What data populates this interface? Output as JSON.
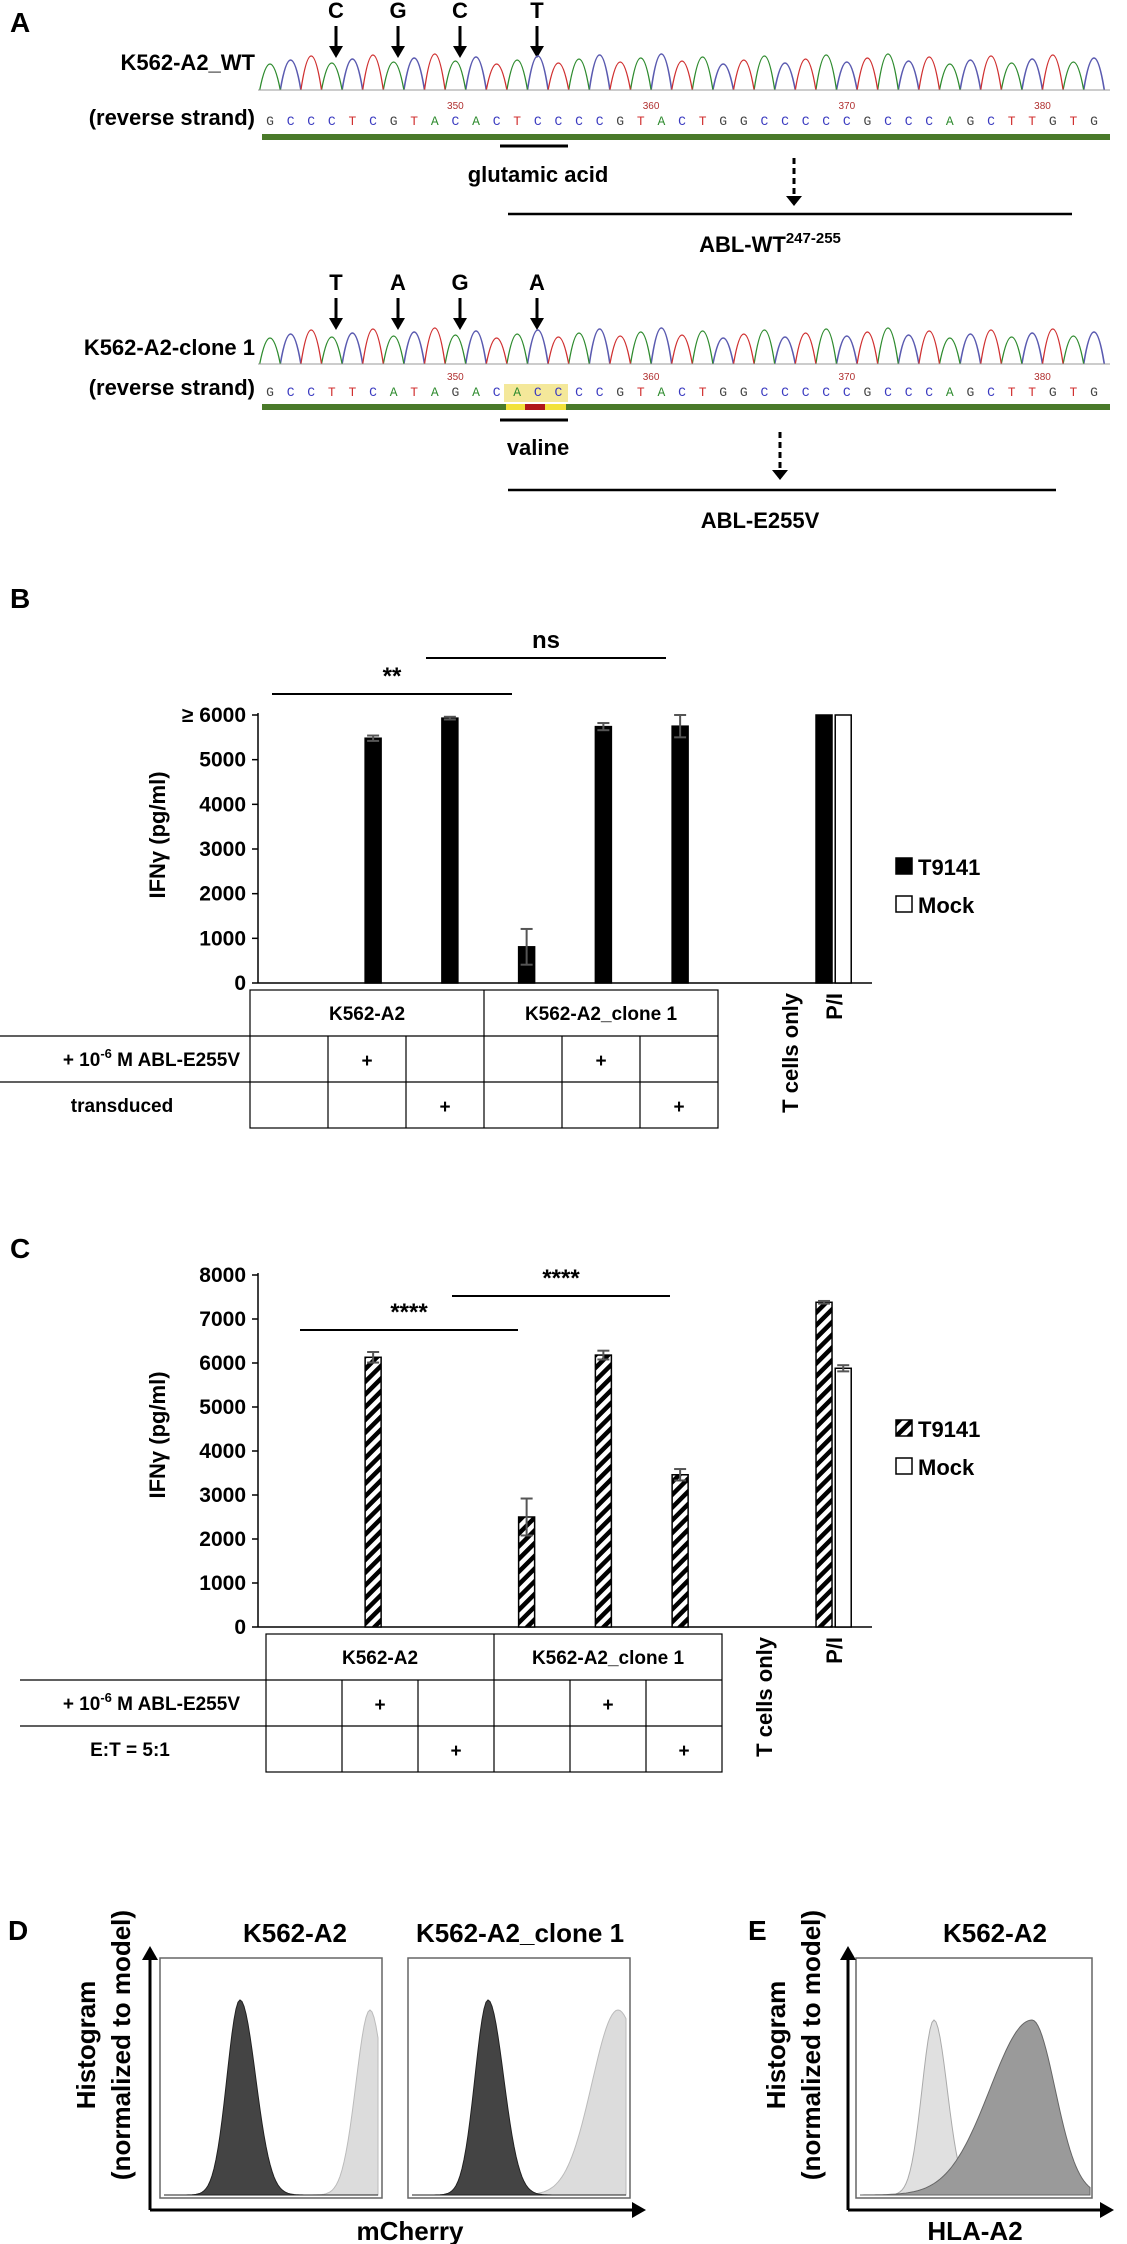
{
  "panel_a": {
    "letter": "A",
    "seq_tick_labels": [
      "350",
      "360",
      "370",
      "380"
    ],
    "wt": {
      "name": "K562-A2_WT",
      "strand": "(reverse strand)",
      "arrows": [
        "C",
        "G",
        "C",
        "T"
      ],
      "bases": [
        "G",
        "C",
        "C",
        "C",
        "T",
        "C",
        "G",
        "T",
        "A",
        "C",
        "A",
        "C",
        "T",
        "C",
        "C",
        "C",
        "C",
        "G",
        "T",
        "A",
        "C",
        "T",
        "G",
        "G",
        "C",
        "C",
        "C",
        "C",
        "C",
        "G",
        "C",
        "C",
        "C",
        "A",
        "G",
        "C",
        "T",
        "T",
        "G",
        "T",
        "G"
      ],
      "codon_label": "glutamic acid",
      "peptide_label": "ABL-WT",
      "peptide_sup": "247-255"
    },
    "clone": {
      "name": "K562-A2-clone 1",
      "strand": "(reverse strand)",
      "arrows": [
        "T",
        "A",
        "G",
        "A"
      ],
      "bases": [
        "G",
        "C",
        "C",
        "T",
        "T",
        "C",
        "A",
        "T",
        "A",
        "G",
        "A",
        "C",
        "A",
        "C",
        "C",
        "C",
        "C",
        "G",
        "T",
        "A",
        "C",
        "T",
        "G",
        "G",
        "C",
        "C",
        "C",
        "C",
        "C",
        "G",
        "C",
        "C",
        "C",
        "A",
        "G",
        "C",
        "T",
        "T",
        "G",
        "T",
        "G"
      ],
      "codon_label": "valine",
      "peptide_label": "ABL-E255V"
    }
  },
  "panel_b": {
    "letter": "B",
    "ylabel": "IFNγ (pg/ml)",
    "top_tick_label": "≥ 6000",
    "sig": [
      "**",
      "ns"
    ],
    "legend": [
      {
        "name": "T9141",
        "fill": "#000000"
      },
      {
        "name": "Mock",
        "fill": "#ffffff"
      }
    ],
    "table": {
      "groups": [
        "K562-A2",
        "K562-A2_clone 1"
      ],
      "row1_prefix": "+ 10",
      "row1_exp": "-6",
      "row1_suffix": " M ABL-E255V",
      "row2": "transduced",
      "plus": "+",
      "extra_cols": [
        "T cells only",
        "P/I"
      ]
    }
  },
  "panel_c": {
    "letter": "C",
    "ylabel": "IFNγ (pg/ml)",
    "sig": [
      "****",
      "****"
    ],
    "legend": [
      {
        "name": "T9141",
        "fill": "hatch"
      },
      {
        "name": "Mock",
        "fill": "#ffffff"
      }
    ],
    "table": {
      "groups": [
        "K562-A2",
        "K562-A2_clone 1"
      ],
      "row1_prefix": "+ 10",
      "row1_exp": "-6",
      "row1_suffix": " M ABL-E255V",
      "row2": "E:T = 5:1",
      "plus": "+",
      "extra_cols": [
        "T cells only",
        "P/I"
      ]
    }
  },
  "panel_d": {
    "letter": "D",
    "ylabel_line1": "Histogram",
    "ylabel_line2": "(normalized to model)",
    "xlabel": "mCherry",
    "titles": [
      "K562-A2",
      "K562-A2_clone 1"
    ]
  },
  "panel_e": {
    "letter": "E",
    "ylabel_line1": "Histogram",
    "ylabel_line2": "(normalized to model)",
    "xlabel": "HLA-A2",
    "title": "K562-A2"
  },
  "chart_data": [
    {
      "type": "bar",
      "panel": "B",
      "ylabel": "IFNγ (pg/ml)",
      "ylim": [
        0,
        6000
      ],
      "yticks": [
        0,
        1000,
        2000,
        3000,
        4000,
        5000,
        6000
      ],
      "series": [
        {
          "name": "T9141",
          "values": [
            null,
            5480,
            5930,
            810,
            5740,
            5750,
            null,
            6000
          ],
          "errors": [
            0,
            60,
            30,
            400,
            80,
            250,
            0,
            0
          ]
        },
        {
          "name": "Mock",
          "values": [
            null,
            null,
            null,
            null,
            null,
            null,
            null,
            6000
          ]
        }
      ]
    },
    {
      "type": "bar",
      "panel": "C",
      "ylabel": "IFNγ (pg/ml)",
      "ylim": [
        0,
        8000
      ],
      "yticks": [
        0,
        1000,
        2000,
        3000,
        4000,
        5000,
        6000,
        7000,
        8000
      ],
      "series": [
        {
          "name": "T9141",
          "values": [
            null,
            6130,
            null,
            2500,
            6180,
            3460,
            null,
            7380
          ],
          "errors": [
            0,
            120,
            0,
            420,
            100,
            130,
            0,
            30
          ]
        },
        {
          "name": "Mock",
          "values": [
            null,
            null,
            null,
            null,
            null,
            null,
            null,
            5880
          ],
          "errors": [
            0,
            0,
            0,
            0,
            0,
            0,
            0,
            70
          ]
        }
      ]
    }
  ]
}
